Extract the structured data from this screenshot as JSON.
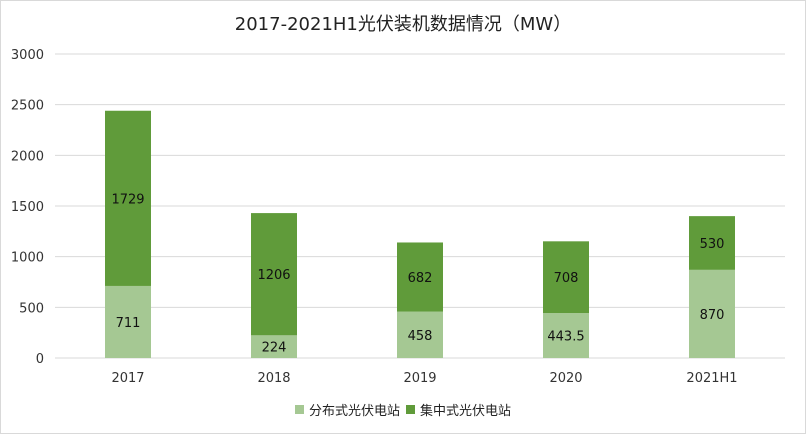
{
  "chart_data": {
    "type": "bar",
    "stacked": true,
    "title": "2017-2021H1光伏装机数据情况（MW）",
    "categories": [
      "2017",
      "2018",
      "2019",
      "2020",
      "2021H1"
    ],
    "series": [
      {
        "name": "分布式光伏电站",
        "values": [
          711,
          224,
          458,
          443.5,
          870
        ],
        "color": "#a5c893"
      },
      {
        "name": "集中式光伏电站",
        "values": [
          1729,
          1206,
          682,
          708,
          530
        ],
        "color": "#609b3a"
      }
    ],
    "ylim": [
      0,
      3000
    ],
    "yticks": [
      0,
      500,
      1000,
      1500,
      2000,
      2500,
      3000
    ],
    "grid": true,
    "legend": "bottom"
  }
}
